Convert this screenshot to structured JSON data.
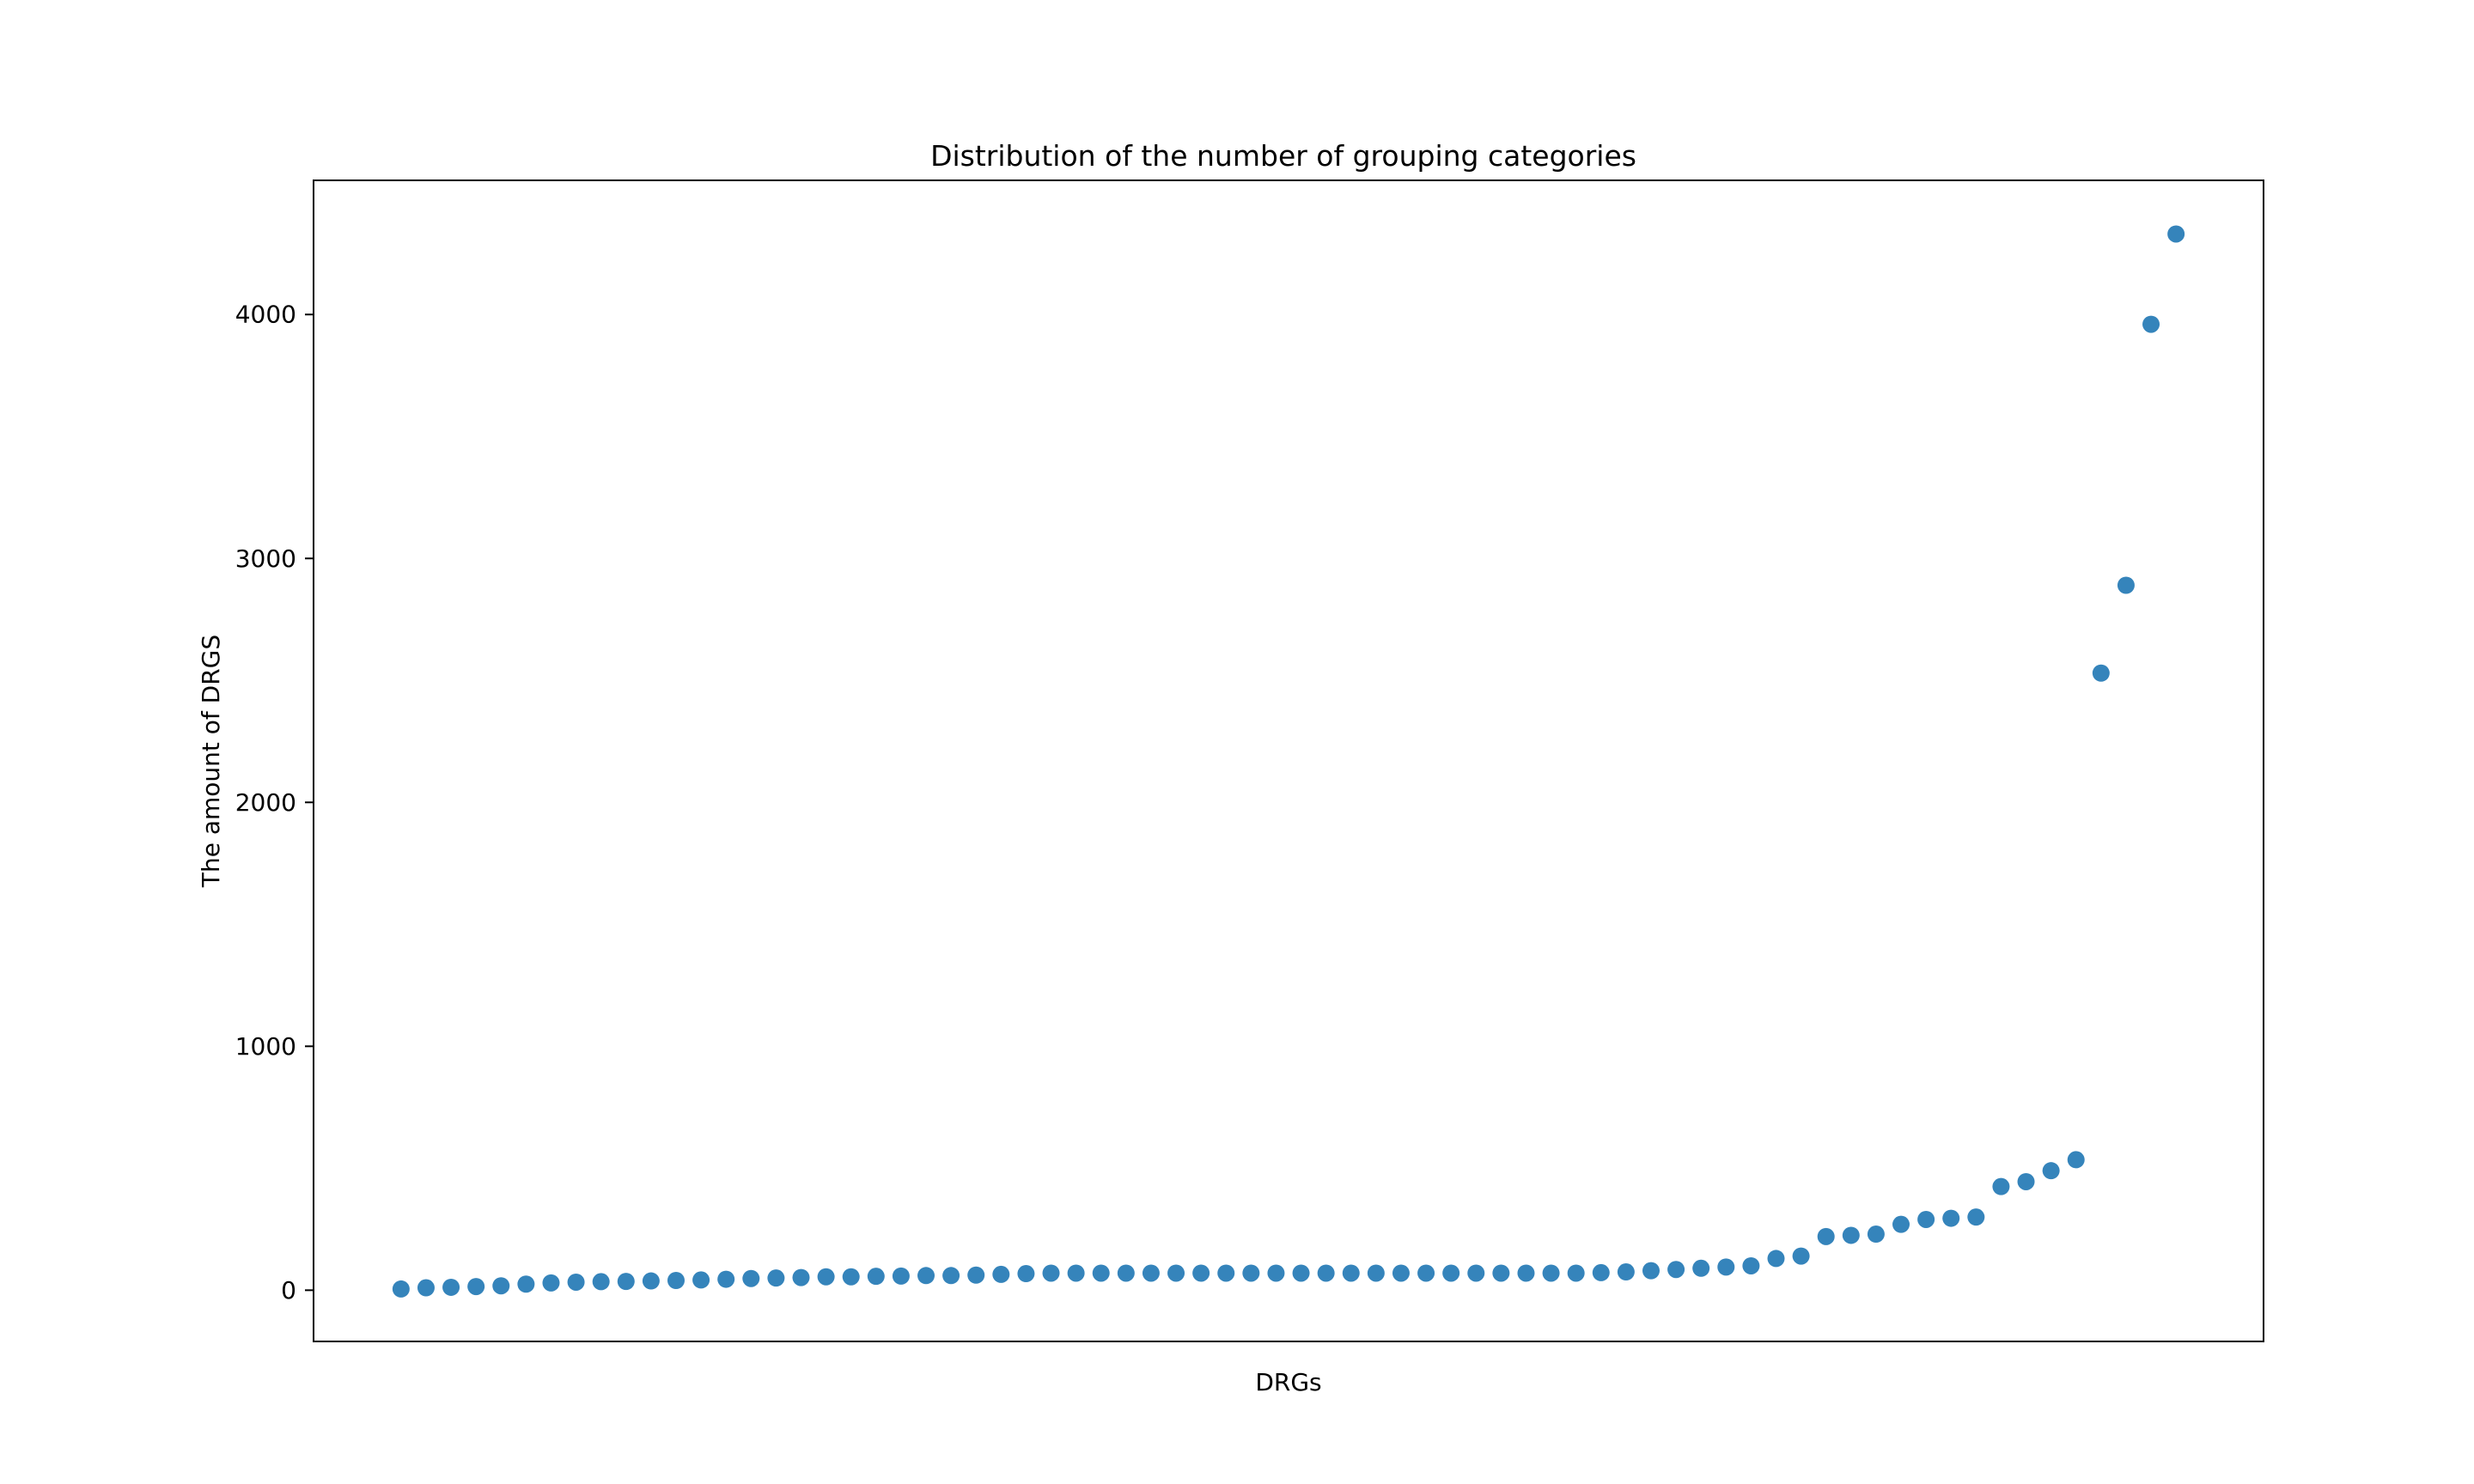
{
  "chart_data": {
    "type": "scatter",
    "title": "Distribution of the number of grouping categories",
    "xlabel": "DRGs",
    "ylabel": "The amount of DRGS",
    "xlim": [
      -3.5,
      74.5
    ],
    "ylim": [
      -210,
      4550
    ],
    "yticks": [
      0,
      1000,
      2000,
      3000,
      4000
    ],
    "ytick_labels": [
      "0",
      "1000",
      "2000",
      "3000",
      "4000"
    ],
    "xticks": [],
    "grid": false,
    "legend": "none",
    "series": [
      {
        "color": "#1f77b4",
        "x": [
          0,
          1,
          2,
          3,
          4,
          5,
          6,
          7,
          8,
          9,
          10,
          11,
          12,
          13,
          14,
          15,
          16,
          17,
          18,
          19,
          20,
          21,
          22,
          23,
          24,
          25,
          26,
          27,
          28,
          29,
          30,
          31,
          32,
          33,
          34,
          35,
          36,
          37,
          38,
          39,
          40,
          41,
          42,
          43,
          44,
          45,
          46,
          47,
          48,
          49,
          50,
          51,
          52,
          53,
          54,
          55,
          56,
          57,
          58,
          59,
          60,
          61,
          62,
          63,
          64,
          65,
          66,
          67,
          68,
          69,
          70,
          71
        ],
        "y": [
          5,
          10,
          12,
          15,
          18,
          25,
          30,
          33,
          35,
          36,
          38,
          40,
          42,
          45,
          48,
          50,
          52,
          55,
          55,
          57,
          58,
          60,
          60,
          62,
          65,
          68,
          70,
          70,
          70,
          70,
          70,
          70,
          70,
          70,
          70,
          70,
          70,
          70,
          70,
          70,
          70,
          70,
          70,
          70,
          70,
          70,
          70,
          70,
          72,
          75,
          80,
          85,
          90,
          95,
          100,
          130,
          140,
          220,
          225,
          230,
          270,
          290,
          295,
          300,
          425,
          445,
          490,
          535,
          2530,
          2890,
          3960,
          4330
        ]
      }
    ]
  }
}
